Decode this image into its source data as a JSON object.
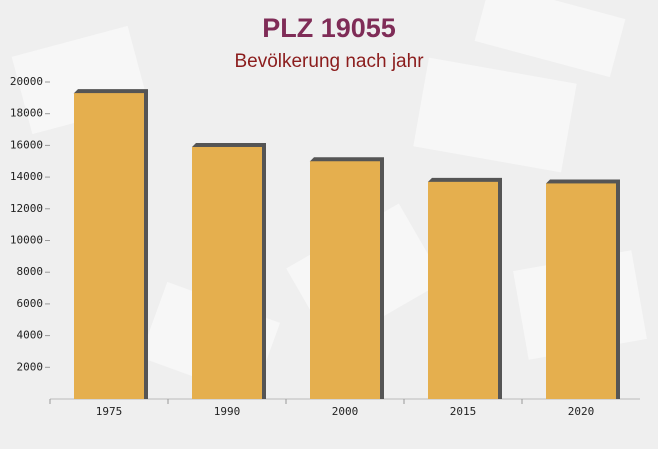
{
  "chart_data": {
    "type": "bar",
    "title": "PLZ 19055",
    "subtitle": "Bevölkerung nach jahr",
    "categories": [
      "1975",
      "1990",
      "2000",
      "2015",
      "2020"
    ],
    "values": [
      19300,
      15900,
      15000,
      13700,
      13600
    ],
    "color": "#ffc04d",
    "ylim": [
      0,
      20000
    ],
    "yticks": [
      2000,
      4000,
      6000,
      8000,
      10000,
      12000,
      14000,
      16000,
      18000,
      20000
    ]
  }
}
